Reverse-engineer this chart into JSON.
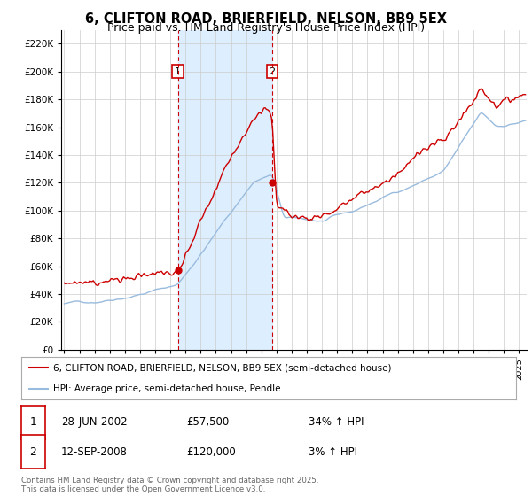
{
  "title": "6, CLIFTON ROAD, BRIERFIELD, NELSON, BB9 5EX",
  "subtitle": "Price paid vs. HM Land Registry's House Price Index (HPI)",
  "title_fontsize": 10.5,
  "subtitle_fontsize": 9,
  "background_color": "#ffffff",
  "plot_bg_color": "#ffffff",
  "grid_color": "#cccccc",
  "hpi_line_color": "#99bbdd",
  "price_line_color": "#cc0000",
  "sale1_date": 2002.49,
  "sale1_price": 57500,
  "sale2_date": 2008.71,
  "sale2_price": 120000,
  "shade_color": "#ddeeff",
  "ylim": [
    0,
    230000
  ],
  "ytick_step": 20000,
  "xlim": [
    1994.8,
    2025.5
  ],
  "legend_entries": [
    "6, CLIFTON ROAD, BRIERFIELD, NELSON, BB9 5EX (semi-detached house)",
    "HPI: Average price, semi-detached house, Pendle"
  ],
  "annotation1_label": "1",
  "annotation1_date": "28-JUN-2002",
  "annotation1_price": "£57,500",
  "annotation1_hpi": "34% ↑ HPI",
  "annotation2_label": "2",
  "annotation2_date": "12-SEP-2008",
  "annotation2_price": "£120,000",
  "annotation2_hpi": "3% ↑ HPI",
  "footer": "Contains HM Land Registry data © Crown copyright and database right 2025.\nThis data is licensed under the Open Government Licence v3.0."
}
